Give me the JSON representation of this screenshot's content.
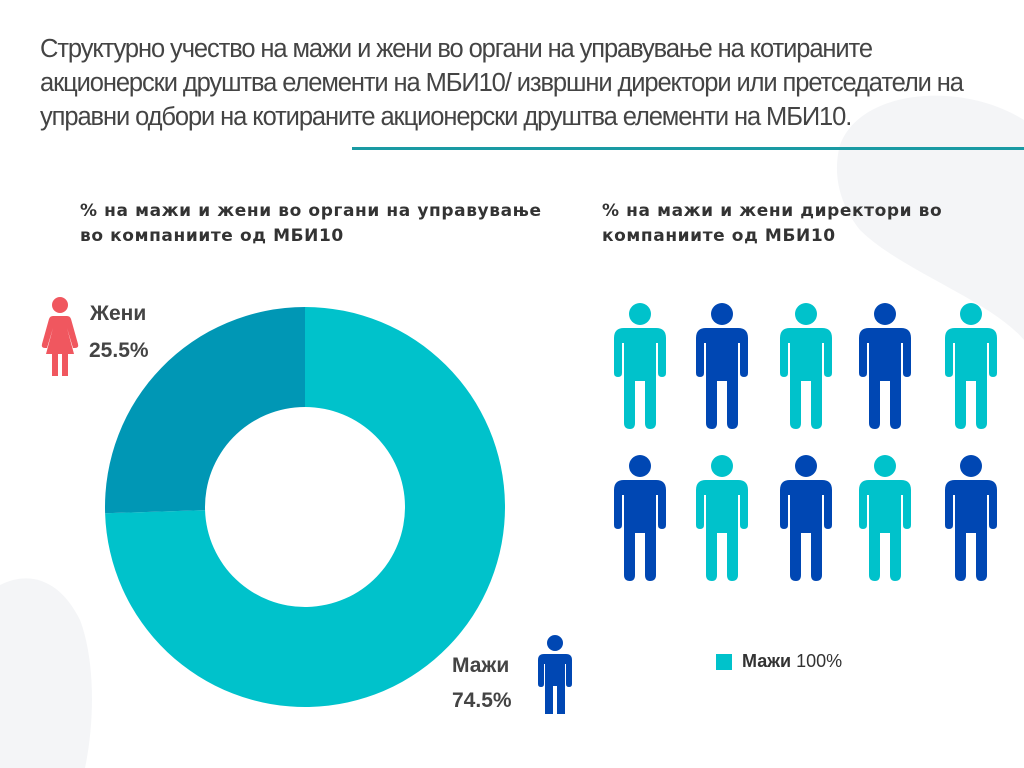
{
  "header": {
    "title": "Структурно учество на мажи и жени во органи на управување на котираните акционерски друштва елементи на МБИ10/ извршни директори или претседатели на управни одбори на котираните акционерски друштва елементи на МБИ10."
  },
  "colors": {
    "men_light": "#00c2cb",
    "men_dark": "#0047b3",
    "women_donut": "#0097b5",
    "women_icon": "#f0575f",
    "accent_rule": "#1a9aa3"
  },
  "chart_data": [
    {
      "type": "pie",
      "subtype": "donut",
      "title": "% на мажи и жени во органи на управување во компаниите од МБИ10",
      "slices": [
        {
          "label": "Мажи",
          "value": 74.5,
          "display": "74.5%",
          "color": "#00c2cb"
        },
        {
          "label": "Жени",
          "value": 25.5,
          "display": "25.5%",
          "color": "#0097b5"
        }
      ]
    },
    {
      "type": "pictogram",
      "title": "% на мажи и жени директори во компаниите од МБИ10",
      "icon": "male-person-icon",
      "rows": [
        [
          "#00c2cb",
          "#0047b3",
          "#00c2cb",
          "#0047b3",
          "#00c2cb"
        ],
        [
          "#0047b3",
          "#00c2cb",
          "#0047b3",
          "#00c2cb",
          "#0047b3"
        ]
      ],
      "legend": [
        {
          "label": "Мажи",
          "value": "100%",
          "color": "#00c2cb"
        }
      ]
    }
  ]
}
